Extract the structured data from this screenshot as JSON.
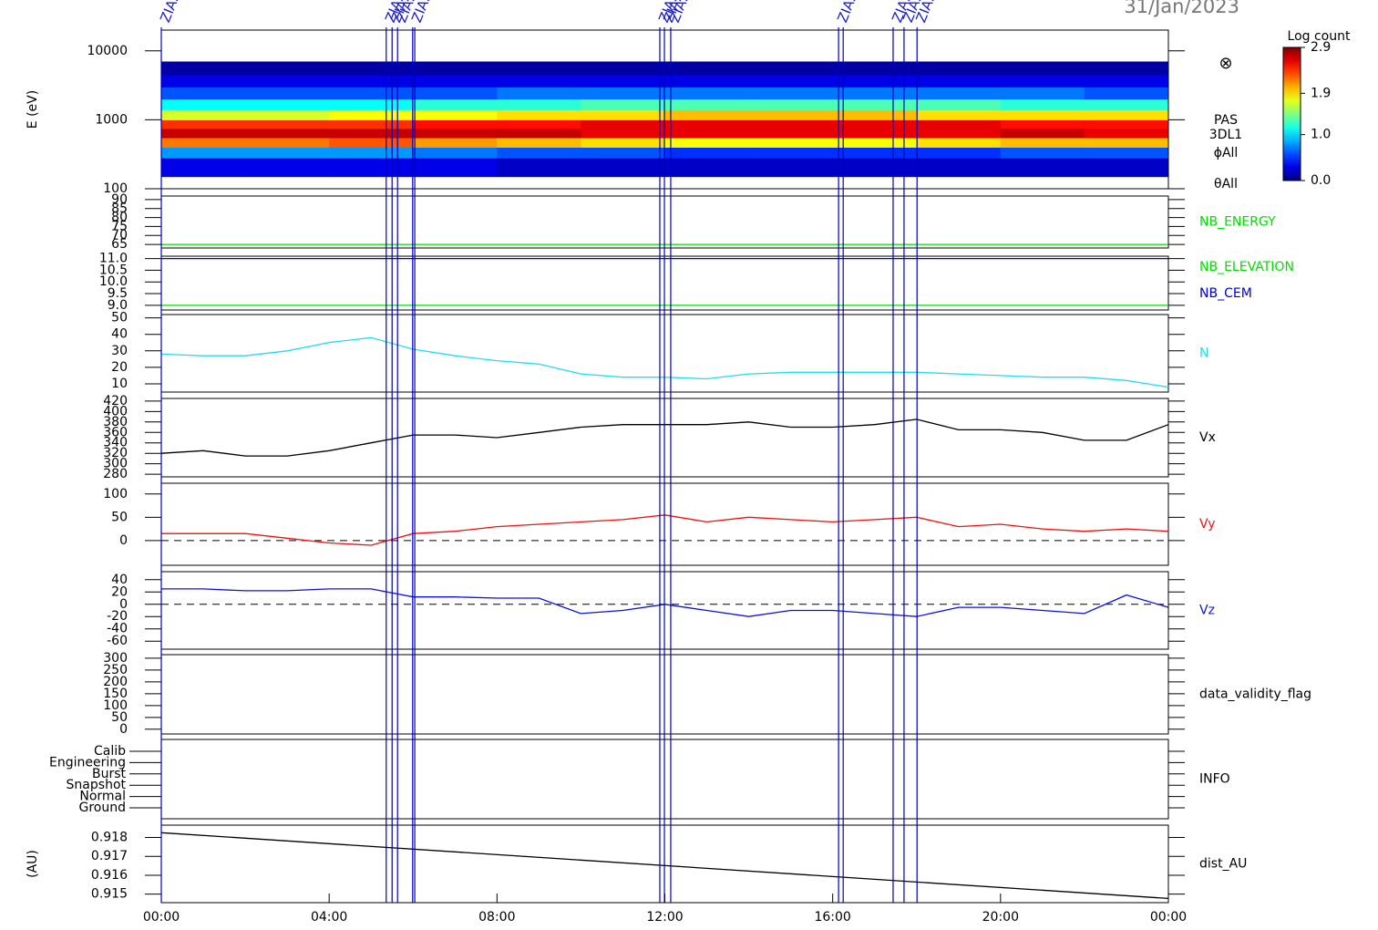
{
  "date": "31/Jan/2023",
  "time_axis": {
    "xlim": [
      0,
      24
    ],
    "xticks": [
      {
        "value": 0,
        "label": "00:00"
      },
      {
        "value": 4,
        "label": "04:00"
      },
      {
        "value": 8,
        "label": "08:00"
      },
      {
        "value": 12,
        "label": "12:00"
      },
      {
        "value": 16,
        "label": "16:00"
      },
      {
        "value": 20,
        "label": "20:00"
      },
      {
        "value": 24,
        "label": "00:00"
      }
    ]
  },
  "events": [
    {
      "time": 0,
      "label": "ZIAS"
    },
    {
      "time": 5.36,
      "label": "ZIAS"
    },
    {
      "time": 5.5,
      "label": "ZIAS"
    },
    {
      "time": 5.63,
      "label": "ZIAS"
    },
    {
      "time": 5.99,
      "label": "ZIAS"
    },
    {
      "time": 6.04
    },
    {
      "time": 11.88,
      "label": "ZIAS"
    },
    {
      "time": 11.99,
      "label": "ZIAS"
    },
    {
      "time": 12.14,
      "label": "ZIAS"
    },
    {
      "time": 16.14,
      "label": "ZIAS"
    },
    {
      "time": 16.25
    },
    {
      "time": 17.44,
      "label": "ZIAS"
    },
    {
      "time": 17.7,
      "label": "ZIAS"
    },
    {
      "time": 18.01,
      "label": "ZIAS"
    }
  ],
  "chart_data": [
    {
      "type": "heatmap",
      "ylabel": "E (eV)",
      "log_y": true,
      "ylim": [
        100,
        20000
      ],
      "yticks": [
        100,
        1000,
        10000
      ],
      "x_edges": [
        0,
        2,
        4,
        6,
        8,
        10,
        12,
        14,
        16,
        18,
        20,
        22,
        24
      ],
      "y_edges": [
        150,
        280,
        400,
        550,
        750,
        1000,
        1400,
        2000,
        3000,
        4500,
        7000
      ],
      "z": [
        [
          0.3,
          0.8,
          2.2,
          2.7,
          2.4,
          1.7,
          1.1,
          0.6,
          0.3,
          0.1
        ],
        [
          0.3,
          0.8,
          2.2,
          2.7,
          2.4,
          1.7,
          1.1,
          0.6,
          0.3,
          0.1
        ],
        [
          0.3,
          0.8,
          2.3,
          2.7,
          2.4,
          1.8,
          1.1,
          0.6,
          0.3,
          0.1
        ],
        [
          0.3,
          0.7,
          2.1,
          2.7,
          2.5,
          1.8,
          1.2,
          0.6,
          0.3,
          0.1
        ],
        [
          0.2,
          0.6,
          2.0,
          2.7,
          2.5,
          1.9,
          1.2,
          0.7,
          0.3,
          0.1
        ],
        [
          0.2,
          0.6,
          1.9,
          2.6,
          2.6,
          1.9,
          1.3,
          0.7,
          0.3,
          0.1
        ],
        [
          0.2,
          0.5,
          1.8,
          2.6,
          2.6,
          2.0,
          1.3,
          0.7,
          0.3,
          0.1
        ],
        [
          0.2,
          0.5,
          1.8,
          2.6,
          2.6,
          2.0,
          1.3,
          0.7,
          0.3,
          0.1
        ],
        [
          0.2,
          0.5,
          1.8,
          2.6,
          2.6,
          2.0,
          1.3,
          0.7,
          0.3,
          0.1
        ],
        [
          0.2,
          0.5,
          1.9,
          2.6,
          2.6,
          1.9,
          1.3,
          0.7,
          0.3,
          0.1
        ],
        [
          0.2,
          0.6,
          2.0,
          2.7,
          2.5,
          1.9,
          1.2,
          0.7,
          0.3,
          0.1
        ],
        [
          0.2,
          0.6,
          2.0,
          2.6,
          2.5,
          1.9,
          1.2,
          0.6,
          0.3,
          0.1
        ]
      ],
      "zlim": [
        0,
        2.9
      ],
      "colorbar_title": "Log count",
      "zticks": [
        {
          "value": 0,
          "label": "0.0"
        },
        {
          "value": 1,
          "label": "1.0"
        },
        1.9,
        2.9
      ],
      "symbol": "⊗",
      "right_labels": [
        "PAS",
        "3DL1",
        "ϕAll",
        "θAll"
      ]
    },
    {
      "type": "line",
      "ylim": [
        63,
        92
      ],
      "yticks": [
        65,
        70,
        75,
        80,
        85,
        90
      ],
      "x": [
        0,
        24
      ],
      "series": [
        {
          "name": "NB_ENERGY",
          "color": "#00dd00",
          "values": [
            65,
            65
          ]
        }
      ]
    },
    {
      "type": "line",
      "ylim": [
        8.8,
        11.1
      ],
      "yticks": [
        {
          "value": 9,
          "label": "9.0"
        },
        9.5,
        {
          "value": 10,
          "label": "10.0"
        },
        10.5,
        {
          "value": 11,
          "label": "11.0"
        }
      ],
      "x": [
        0,
        24
      ],
      "series": [
        {
          "name": "NB_ELEVATION",
          "color": "#00dd00",
          "values": [
            9,
            9
          ]
        },
        {
          "name": "NB_CEM",
          "color": "#0000cc",
          "values": [
            11,
            11
          ]
        }
      ]
    },
    {
      "type": "line",
      "ylim": [
        5,
        52
      ],
      "yticks": [
        10,
        20,
        30,
        40,
        50
      ],
      "x": [
        0,
        1,
        2,
        3,
        4,
        5,
        6,
        7,
        8,
        9,
        10,
        11,
        12,
        13,
        14,
        15,
        16,
        17,
        18,
        19,
        20,
        21,
        22,
        23,
        24
      ],
      "series": [
        {
          "name": "N",
          "color": "#22ddee",
          "values": [
            28,
            27,
            27,
            30,
            35,
            38,
            31,
            27,
            24,
            22,
            16,
            14,
            14,
            13,
            16,
            17,
            17,
            17,
            17,
            16,
            15,
            14,
            14,
            12,
            8
          ]
        }
      ]
    },
    {
      "type": "line",
      "ylim": [
        275,
        425
      ],
      "yticks": [
        280,
        300,
        320,
        340,
        360,
        380,
        400,
        420
      ],
      "x": [
        0,
        1,
        2,
        3,
        4,
        5,
        6,
        7,
        8,
        9,
        10,
        11,
        12,
        13,
        14,
        15,
        16,
        17,
        18,
        19,
        20,
        21,
        22,
        23,
        24
      ],
      "series": [
        {
          "name": "Vx",
          "color": "#000000",
          "values": [
            320,
            325,
            315,
            315,
            325,
            340,
            355,
            355,
            350,
            360,
            370,
            375,
            375,
            375,
            380,
            370,
            370,
            375,
            385,
            365,
            365,
            360,
            345,
            345,
            375
          ]
        }
      ]
    },
    {
      "type": "line",
      "ylim": [
        -53,
        123
      ],
      "yticks": [
        0,
        50,
        100
      ],
      "zero_line": true,
      "x": [
        0,
        1,
        2,
        3,
        4,
        5,
        6,
        7,
        8,
        9,
        10,
        11,
        12,
        13,
        14,
        15,
        16,
        17,
        18,
        19,
        20,
        21,
        22,
        23,
        24
      ],
      "series": [
        {
          "name": "Vy",
          "color": "#ee1111",
          "values": [
            15,
            15,
            15,
            5,
            -5,
            -10,
            15,
            20,
            30,
            35,
            40,
            45,
            55,
            40,
            50,
            45,
            40,
            45,
            50,
            30,
            35,
            25,
            20,
            25,
            20
          ]
        }
      ]
    },
    {
      "type": "line",
      "ylim": [
        -73,
        53
      ],
      "yticks": [
        -60,
        -40,
        -20,
        0,
        20,
        40
      ],
      "zero_line": true,
      "x": [
        0,
        1,
        2,
        3,
        4,
        5,
        6,
        7,
        8,
        9,
        10,
        11,
        12,
        13,
        14,
        15,
        16,
        17,
        18,
        19,
        20,
        21,
        22,
        23,
        24
      ],
      "series": [
        {
          "name": "Vz",
          "color": "#1111dd",
          "values": [
            25,
            25,
            22,
            22,
            25,
            25,
            12,
            12,
            10,
            10,
            -15,
            -10,
            0,
            -10,
            -20,
            -10,
            -10,
            -15,
            -20,
            -5,
            -5,
            -10,
            -15,
            15,
            -5
          ]
        }
      ]
    },
    {
      "type": "empty",
      "ylim": [
        -20,
        315
      ],
      "yticks": [
        0,
        50,
        100,
        150,
        200,
        250,
        300
      ],
      "label": "data_validity_flag"
    },
    {
      "type": "category",
      "categories": [
        "Calib",
        "Engineering",
        "Burst",
        "Snapshot",
        "Normal",
        "Ground"
      ],
      "label": "INFO"
    },
    {
      "type": "line",
      "ylabel": "(AU)",
      "ylim": [
        0.91455,
        0.91865
      ],
      "yticks": [
        0.915,
        0.916,
        0.917,
        0.918
      ],
      "x": [
        0,
        24
      ],
      "series": [
        {
          "name": "dist_AU",
          "color": "#000000",
          "values": [
            0.91825,
            0.91477
          ]
        }
      ]
    }
  ]
}
